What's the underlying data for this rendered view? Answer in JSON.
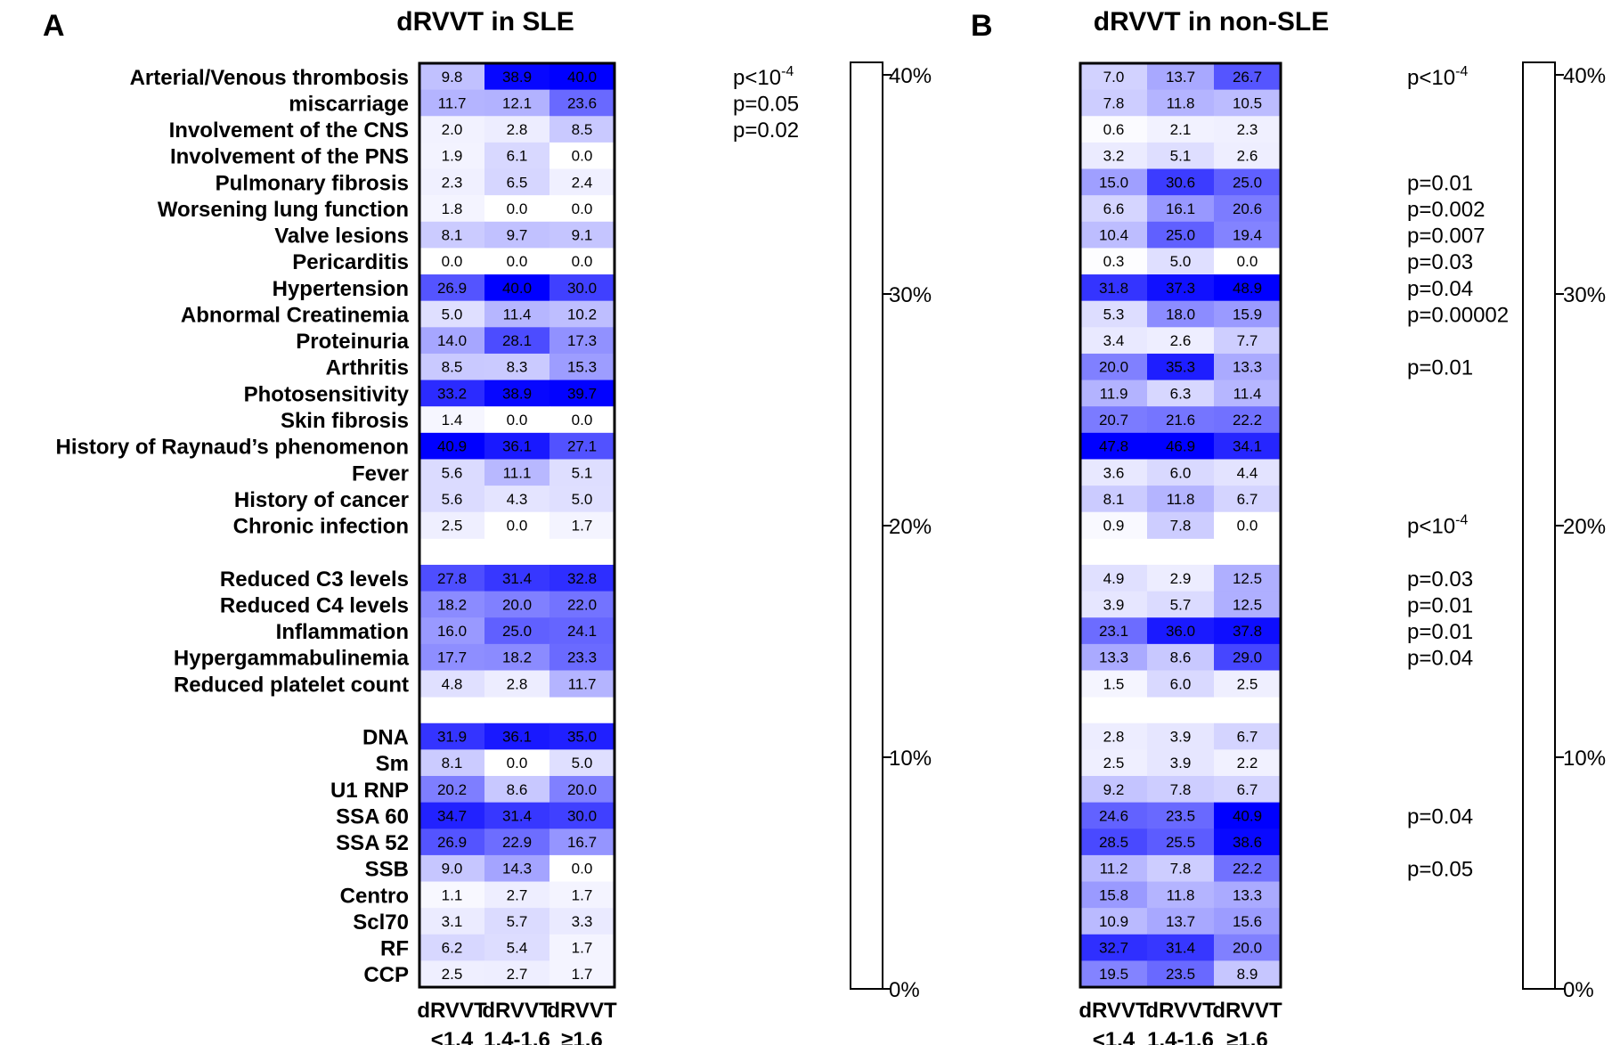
{
  "chart_data": [
    {
      "type": "heatmap",
      "panel_letter": "A",
      "title": "dRVVT in SLE",
      "columns": [
        "dRVVT\n<1.4",
        "dRVVT\n1.4-1.6",
        "dRVVT\n≥1.6"
      ],
      "rows": [
        {
          "label": "Arterial/Venous thrombosis",
          "values": [
            9.8,
            38.9,
            40.0
          ],
          "p": "p<10",
          "p_sup": "-4"
        },
        {
          "label": "miscarriage",
          "values": [
            11.7,
            12.1,
            23.6
          ],
          "p": "p=0.05"
        },
        {
          "label": "Involvement of the CNS",
          "values": [
            2.0,
            2.8,
            8.5
          ],
          "p": "p=0.02"
        },
        {
          "label": "Involvement of the PNS",
          "values": [
            1.9,
            6.1,
            0.0
          ]
        },
        {
          "label": "Pulmonary fibrosis",
          "values": [
            2.3,
            6.5,
            2.4
          ]
        },
        {
          "label": "Worsening lung function",
          "values": [
            1.8,
            0.0,
            0.0
          ]
        },
        {
          "label": "Valve lesions",
          "values": [
            8.1,
            9.7,
            9.1
          ]
        },
        {
          "label": "Pericarditis",
          "values": [
            0.0,
            0.0,
            0.0
          ]
        },
        {
          "label": "Hypertension",
          "values": [
            26.9,
            40.0,
            30.0
          ]
        },
        {
          "label": "Abnormal Creatinemia",
          "values": [
            5.0,
            11.4,
            10.2
          ]
        },
        {
          "label": "Proteinuria",
          "values": [
            14.0,
            28.1,
            17.3
          ]
        },
        {
          "label": "Arthritis",
          "values": [
            8.5,
            8.3,
            15.3
          ]
        },
        {
          "label": "Photosensitivity",
          "values": [
            33.2,
            38.9,
            39.7
          ]
        },
        {
          "label": "Skin fibrosis",
          "values": [
            1.4,
            0.0,
            0.0
          ]
        },
        {
          "label": "History of Raynaud’s phenomenon",
          "values": [
            40.9,
            36.1,
            27.1
          ]
        },
        {
          "label": "Fever",
          "values": [
            5.6,
            11.1,
            5.1
          ]
        },
        {
          "label": "History of cancer",
          "values": [
            5.6,
            4.3,
            5.0
          ]
        },
        {
          "label": "Chronic infection",
          "values": [
            2.5,
            0.0,
            1.7
          ]
        },
        null,
        {
          "label": "Reduced C3 levels",
          "values": [
            27.8,
            31.4,
            32.8
          ]
        },
        {
          "label": "Reduced C4 levels",
          "values": [
            18.2,
            20.0,
            22.0
          ]
        },
        {
          "label": "Inflammation",
          "values": [
            16.0,
            25.0,
            24.1
          ]
        },
        {
          "label": "Hypergammabulinemia",
          "values": [
            17.7,
            18.2,
            23.3
          ]
        },
        {
          "label": "Reduced platelet count",
          "values": [
            4.8,
            2.8,
            11.7
          ]
        },
        null,
        {
          "label": "DNA",
          "values": [
            31.9,
            36.1,
            35.0
          ]
        },
        {
          "label": "Sm",
          "values": [
            8.1,
            0.0,
            5.0
          ]
        },
        {
          "label": "U1 RNP",
          "values": [
            20.2,
            8.6,
            20.0
          ]
        },
        {
          "label": "SSA 60",
          "values": [
            34.7,
            31.4,
            30.0
          ]
        },
        {
          "label": "SSA 52",
          "values": [
            26.9,
            22.9,
            16.7
          ]
        },
        {
          "label": "SSB",
          "values": [
            9.0,
            14.3,
            0.0
          ]
        },
        {
          "label": "Centro",
          "values": [
            1.1,
            2.7,
            1.7
          ]
        },
        {
          "label": "Scl70",
          "values": [
            3.1,
            5.7,
            3.3
          ]
        },
        {
          "label": "RF",
          "values": [
            6.2,
            5.4,
            1.7
          ]
        },
        {
          "label": "CCP",
          "values": [
            2.5,
            2.7,
            1.7
          ]
        }
      ],
      "colorbar": {
        "range": [
          0,
          40
        ],
        "ticks": [
          "0%",
          "10%",
          "20%",
          "30%",
          "40%"
        ]
      },
      "color_low": "#ffffff",
      "color_high": "#0000ff"
    },
    {
      "type": "heatmap",
      "panel_letter": "B",
      "title": "dRVVT in non-SLE",
      "columns": [
        "dRVVT\n<1.4",
        "dRVVT\n1.4-1.6",
        "dRVVT\n≥1.6"
      ],
      "rows": [
        {
          "values": [
            7.0,
            13.7,
            26.7
          ],
          "p": "p<10",
          "p_sup": "-4"
        },
        {
          "values": [
            7.8,
            11.8,
            10.5
          ]
        },
        {
          "values": [
            0.6,
            2.1,
            2.3
          ]
        },
        {
          "values": [
            3.2,
            5.1,
            2.6
          ]
        },
        {
          "values": [
            15.0,
            30.6,
            25.0
          ],
          "p": "p=0.01"
        },
        {
          "values": [
            6.6,
            16.1,
            20.6
          ],
          "p": "p=0.002"
        },
        {
          "values": [
            10.4,
            25.0,
            19.4
          ],
          "p": "p=0.007"
        },
        {
          "values": [
            0.3,
            5.0,
            0.0
          ],
          "p": "p=0.03"
        },
        {
          "values": [
            31.8,
            37.3,
            48.9
          ],
          "p": "p=0.04"
        },
        {
          "values": [
            5.3,
            18.0,
            15.9
          ],
          "p": "p=0.00002"
        },
        {
          "values": [
            3.4,
            2.6,
            7.7
          ]
        },
        {
          "values": [
            20.0,
            35.3,
            13.3
          ],
          "p": "p=0.01"
        },
        {
          "values": [
            11.9,
            6.3,
            11.4
          ]
        },
        {
          "values": [
            20.7,
            21.6,
            22.2
          ]
        },
        {
          "values": [
            47.8,
            46.9,
            34.1
          ]
        },
        {
          "values": [
            3.6,
            6.0,
            4.4
          ]
        },
        {
          "values": [
            8.1,
            11.8,
            6.7
          ]
        },
        {
          "values": [
            0.9,
            7.8,
            0.0
          ],
          "p": "p<10",
          "p_sup": "-4"
        },
        null,
        {
          "values": [
            4.9,
            2.9,
            12.5
          ],
          "p": "p=0.03"
        },
        {
          "values": [
            3.9,
            5.7,
            12.5
          ],
          "p": "p=0.01"
        },
        {
          "values": [
            23.1,
            36.0,
            37.8
          ],
          "p": "p=0.01"
        },
        {
          "values": [
            13.3,
            8.6,
            29.0
          ],
          "p": "p=0.04"
        },
        {
          "values": [
            1.5,
            6.0,
            2.5
          ]
        },
        null,
        {
          "values": [
            2.8,
            3.9,
            6.7
          ]
        },
        {
          "values": [
            2.5,
            3.9,
            2.2
          ]
        },
        {
          "values": [
            9.2,
            7.8,
            6.7
          ]
        },
        {
          "values": [
            24.6,
            23.5,
            40.9
          ],
          "p": "p=0.04"
        },
        {
          "values": [
            28.5,
            25.5,
            38.6
          ]
        },
        {
          "values": [
            11.2,
            7.8,
            22.2
          ],
          "p": "p=0.05"
        },
        {
          "values": [
            15.8,
            11.8,
            13.3
          ]
        },
        {
          "values": [
            10.9,
            13.7,
            15.6
          ]
        },
        {
          "values": [
            32.7,
            31.4,
            20.0
          ]
        },
        {
          "values": [
            19.5,
            23.5,
            8.9
          ]
        }
      ],
      "colorbar": {
        "range": [
          0,
          40
        ],
        "ticks": [
          "0%",
          "10%",
          "20%",
          "30%",
          "40%"
        ]
      },
      "color_low": "#ffffff",
      "color_high": "#0000ff"
    }
  ]
}
